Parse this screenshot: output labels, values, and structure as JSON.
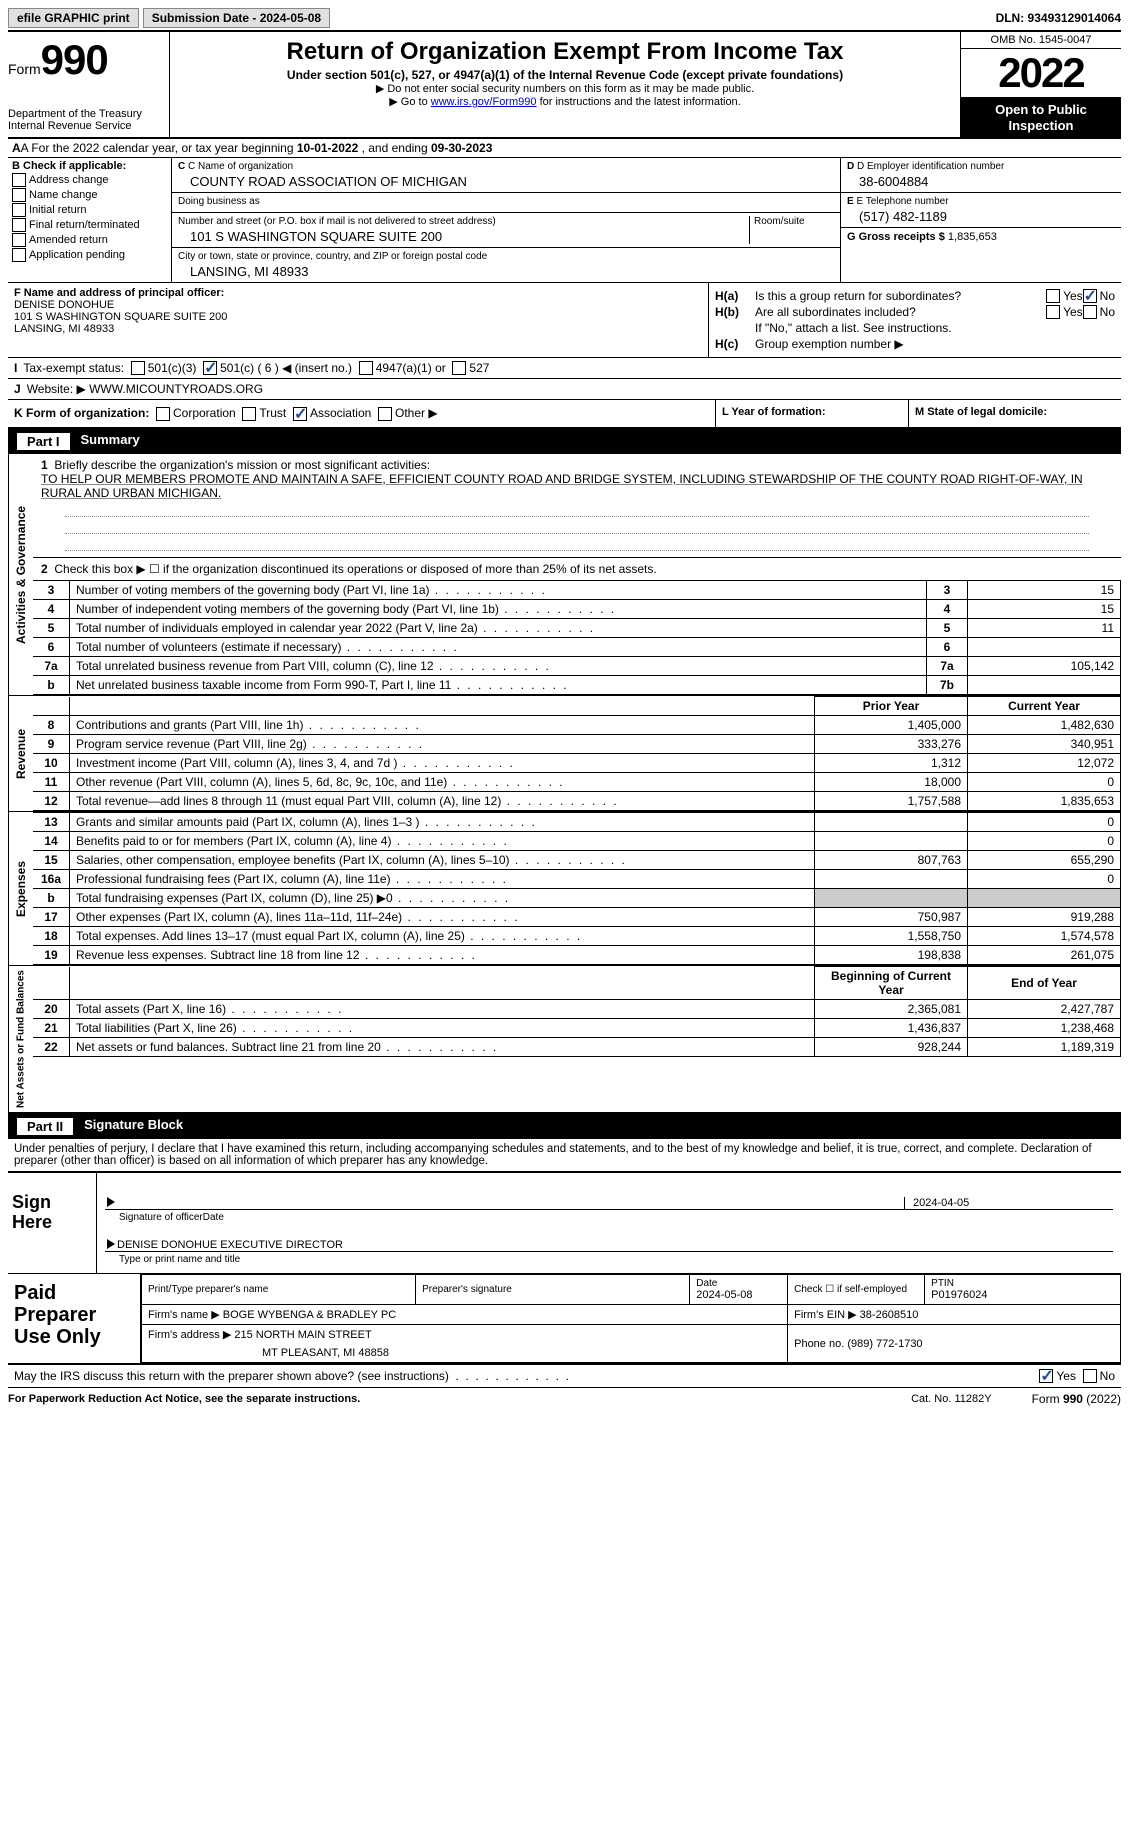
{
  "topbar": {
    "efile": "efile GRAPHIC print",
    "submission_label": "Submission Date - 2024-05-08",
    "dln": "DLN: 93493129014064"
  },
  "header": {
    "form_word": "Form",
    "form_num": "990",
    "dept": "Department of the Treasury",
    "irs": "Internal Revenue Service",
    "title": "Return of Organization Exempt From Income Tax",
    "subtitle": "Under section 501(c), 527, or 4947(a)(1) of the Internal Revenue Code (except private foundations)",
    "note1": "▶ Do not enter social security numbers on this form as it may be made public.",
    "note2_pre": "▶ Go to ",
    "note2_link": "www.irs.gov/Form990",
    "note2_post": " for instructions and the latest information.",
    "omb": "OMB No. 1545-0047",
    "year": "2022",
    "open": "Open to Public Inspection"
  },
  "row_a": {
    "text_pre": "A For the 2022 calendar year, or tax year beginning ",
    "begin": "10-01-2022",
    "mid": " , and ending ",
    "end": "09-30-2023"
  },
  "col_b": {
    "label": "B Check if applicable:",
    "items": [
      "Address change",
      "Name change",
      "Initial return",
      "Final return/terminated",
      "Amended return",
      "Application pending"
    ]
  },
  "col_c": {
    "name_label": "C Name of organization",
    "name": "COUNTY ROAD ASSOCIATION OF MICHIGAN",
    "dba_label": "Doing business as",
    "street_label": "Number and street (or P.O. box if mail is not delivered to street address)",
    "room_label": "Room/suite",
    "street": "101 S WASHINGTON SQUARE SUITE 200",
    "city_label": "City or town, state or province, country, and ZIP or foreign postal code",
    "city": "LANSING, MI  48933"
  },
  "col_de": {
    "d_label": "D Employer identification number",
    "d_val": "38-6004884",
    "e_label": "E Telephone number",
    "e_val": "(517) 482-1189",
    "g_label": "G Gross receipts $",
    "g_val": "1,835,653"
  },
  "col_f": {
    "label": "F  Name and address of principal officer:",
    "name": "DENISE DONOHUE",
    "addr1": "101 S WASHINGTON SQUARE SUITE 200",
    "addr2": "LANSING, MI  48933"
  },
  "col_h": {
    "ha_label": "H(a)",
    "ha_text": "Is this a group return for subordinates?",
    "hb_label": "H(b)",
    "hb_text": "Are all subordinates included?",
    "hb_note": "If \"No,\" attach a list. See instructions.",
    "hc_label": "H(c)",
    "hc_text": "Group exemption number ▶",
    "yes": "Yes",
    "no": "No"
  },
  "row_i": {
    "label": "I",
    "text": "Tax-exempt status:",
    "opts": [
      "501(c)(3)",
      "501(c) ( 6 ) ◀ (insert no.)",
      "4947(a)(1) or",
      "527"
    ]
  },
  "row_j": {
    "label": "J",
    "text": "Website: ▶",
    "val": "WWW.MICOUNTYROADS.ORG"
  },
  "row_k": {
    "label": "K Form of organization:",
    "opts": [
      "Corporation",
      "Trust",
      "Association",
      "Other ▶"
    ]
  },
  "row_l": {
    "label": "L Year of formation:"
  },
  "row_m": {
    "label": "M State of legal domicile:"
  },
  "part1": {
    "num": "Part I",
    "title": "Summary"
  },
  "mission": {
    "line1_label": "1",
    "line1_text": "Briefly describe the organization's mission or most significant activities:",
    "text": "TO HELP OUR MEMBERS PROMOTE AND MAINTAIN A SAFE, EFFICIENT COUNTY ROAD AND BRIDGE SYSTEM, INCLUDING STEWARDSHIP OF THE COUNTY ROAD RIGHT-OF-WAY, IN RURAL AND URBAN MICHIGAN."
  },
  "line2": {
    "num": "2",
    "text": "Check this box ▶ ☐ if the organization discontinued its operations or disposed of more than 25% of its net assets."
  },
  "activities": {
    "vtab": "Activities & Governance",
    "rows": [
      {
        "n": "3",
        "d": "Number of voting members of the governing body (Part VI, line 1a)",
        "b": "3",
        "v": "15"
      },
      {
        "n": "4",
        "d": "Number of independent voting members of the governing body (Part VI, line 1b)",
        "b": "4",
        "v": "15"
      },
      {
        "n": "5",
        "d": "Total number of individuals employed in calendar year 2022 (Part V, line 2a)",
        "b": "5",
        "v": "11"
      },
      {
        "n": "6",
        "d": "Total number of volunteers (estimate if necessary)",
        "b": "6",
        "v": ""
      },
      {
        "n": "7a",
        "d": "Total unrelated business revenue from Part VIII, column (C), line 12",
        "b": "7a",
        "v": "105,142"
      },
      {
        "n": "b",
        "d": "Net unrelated business taxable income from Form 990-T, Part I, line 11",
        "b": "7b",
        "v": ""
      }
    ]
  },
  "revenue": {
    "vtab": "Revenue",
    "hdr_prior": "Prior Year",
    "hdr_current": "Current Year",
    "rows": [
      {
        "n": "8",
        "d": "Contributions and grants (Part VIII, line 1h)",
        "p": "1,405,000",
        "c": "1,482,630"
      },
      {
        "n": "9",
        "d": "Program service revenue (Part VIII, line 2g)",
        "p": "333,276",
        "c": "340,951"
      },
      {
        "n": "10",
        "d": "Investment income (Part VIII, column (A), lines 3, 4, and 7d )",
        "p": "1,312",
        "c": "12,072"
      },
      {
        "n": "11",
        "d": "Other revenue (Part VIII, column (A), lines 5, 6d, 8c, 9c, 10c, and 11e)",
        "p": "18,000",
        "c": "0"
      },
      {
        "n": "12",
        "d": "Total revenue—add lines 8 through 11 (must equal Part VIII, column (A), line 12)",
        "p": "1,757,588",
        "c": "1,835,653"
      }
    ]
  },
  "expenses": {
    "vtab": "Expenses",
    "rows": [
      {
        "n": "13",
        "d": "Grants and similar amounts paid (Part IX, column (A), lines 1–3 )",
        "p": "",
        "c": "0"
      },
      {
        "n": "14",
        "d": "Benefits paid to or for members (Part IX, column (A), line 4)",
        "p": "",
        "c": "0"
      },
      {
        "n": "15",
        "d": "Salaries, other compensation, employee benefits (Part IX, column (A), lines 5–10)",
        "p": "807,763",
        "c": "655,290"
      },
      {
        "n": "16a",
        "d": "Professional fundraising fees (Part IX, column (A), line 11e)",
        "p": "",
        "c": "0"
      },
      {
        "n": "b",
        "d": "Total fundraising expenses (Part IX, column (D), line 25) ▶0",
        "p": "shade",
        "c": "shade"
      },
      {
        "n": "17",
        "d": "Other expenses (Part IX, column (A), lines 11a–11d, 11f–24e)",
        "p": "750,987",
        "c": "919,288"
      },
      {
        "n": "18",
        "d": "Total expenses. Add lines 13–17 (must equal Part IX, column (A), line 25)",
        "p": "1,558,750",
        "c": "1,574,578"
      },
      {
        "n": "19",
        "d": "Revenue less expenses. Subtract line 18 from line 12",
        "p": "198,838",
        "c": "261,075"
      }
    ]
  },
  "netassets": {
    "vtab": "Net Assets or Fund Balances",
    "hdr_begin": "Beginning of Current Year",
    "hdr_end": "End of Year",
    "rows": [
      {
        "n": "20",
        "d": "Total assets (Part X, line 16)",
        "p": "2,365,081",
        "c": "2,427,787"
      },
      {
        "n": "21",
        "d": "Total liabilities (Part X, line 26)",
        "p": "1,436,837",
        "c": "1,238,468"
      },
      {
        "n": "22",
        "d": "Net assets or fund balances. Subtract line 21 from line 20",
        "p": "928,244",
        "c": "1,189,319"
      }
    ]
  },
  "part2": {
    "num": "Part II",
    "title": "Signature Block",
    "penalty": "Under penalties of perjury, I declare that I have examined this return, including accompanying schedules and statements, and to the best of my knowledge and belief, it is true, correct, and complete. Declaration of preparer (other than officer) is based on all information of which preparer has any knowledge."
  },
  "sign": {
    "label": "Sign Here",
    "sig_label": "Signature of officer",
    "date_label": "Date",
    "date_val": "2024-04-05",
    "name": "DENISE DONOHUE  EXECUTIVE DIRECTOR",
    "name_label": "Type or print name and title"
  },
  "paid": {
    "label": "Paid Preparer Use Only",
    "r1": {
      "c1_label": "Print/Type preparer's name",
      "c2_label": "Preparer's signature",
      "c3_label": "Date",
      "c3_val": "2024-05-08",
      "c4_label": "Check ☐ if self-employed",
      "c5_label": "PTIN",
      "c5_val": "P01976024"
    },
    "r2": {
      "firm_label": "Firm's name      ▶",
      "firm_val": "BOGE WYBENGA & BRADLEY PC",
      "ein_label": "Firm's EIN ▶",
      "ein_val": "38-2608510"
    },
    "r3": {
      "addr_label": "Firm's address ▶",
      "addr_val1": "215 NORTH MAIN STREET",
      "addr_val2": "MT PLEASANT, MI  48858",
      "phone_label": "Phone no.",
      "phone_val": "(989) 772-1730"
    }
  },
  "discuss": {
    "text": "May the IRS discuss this return with the preparer shown above? (see instructions)",
    "yes": "Yes",
    "no": "No"
  },
  "footer": {
    "left": "For Paperwork Reduction Act Notice, see the separate instructions.",
    "center": "Cat. No. 11282Y",
    "right": "Form 990 (2022)"
  }
}
